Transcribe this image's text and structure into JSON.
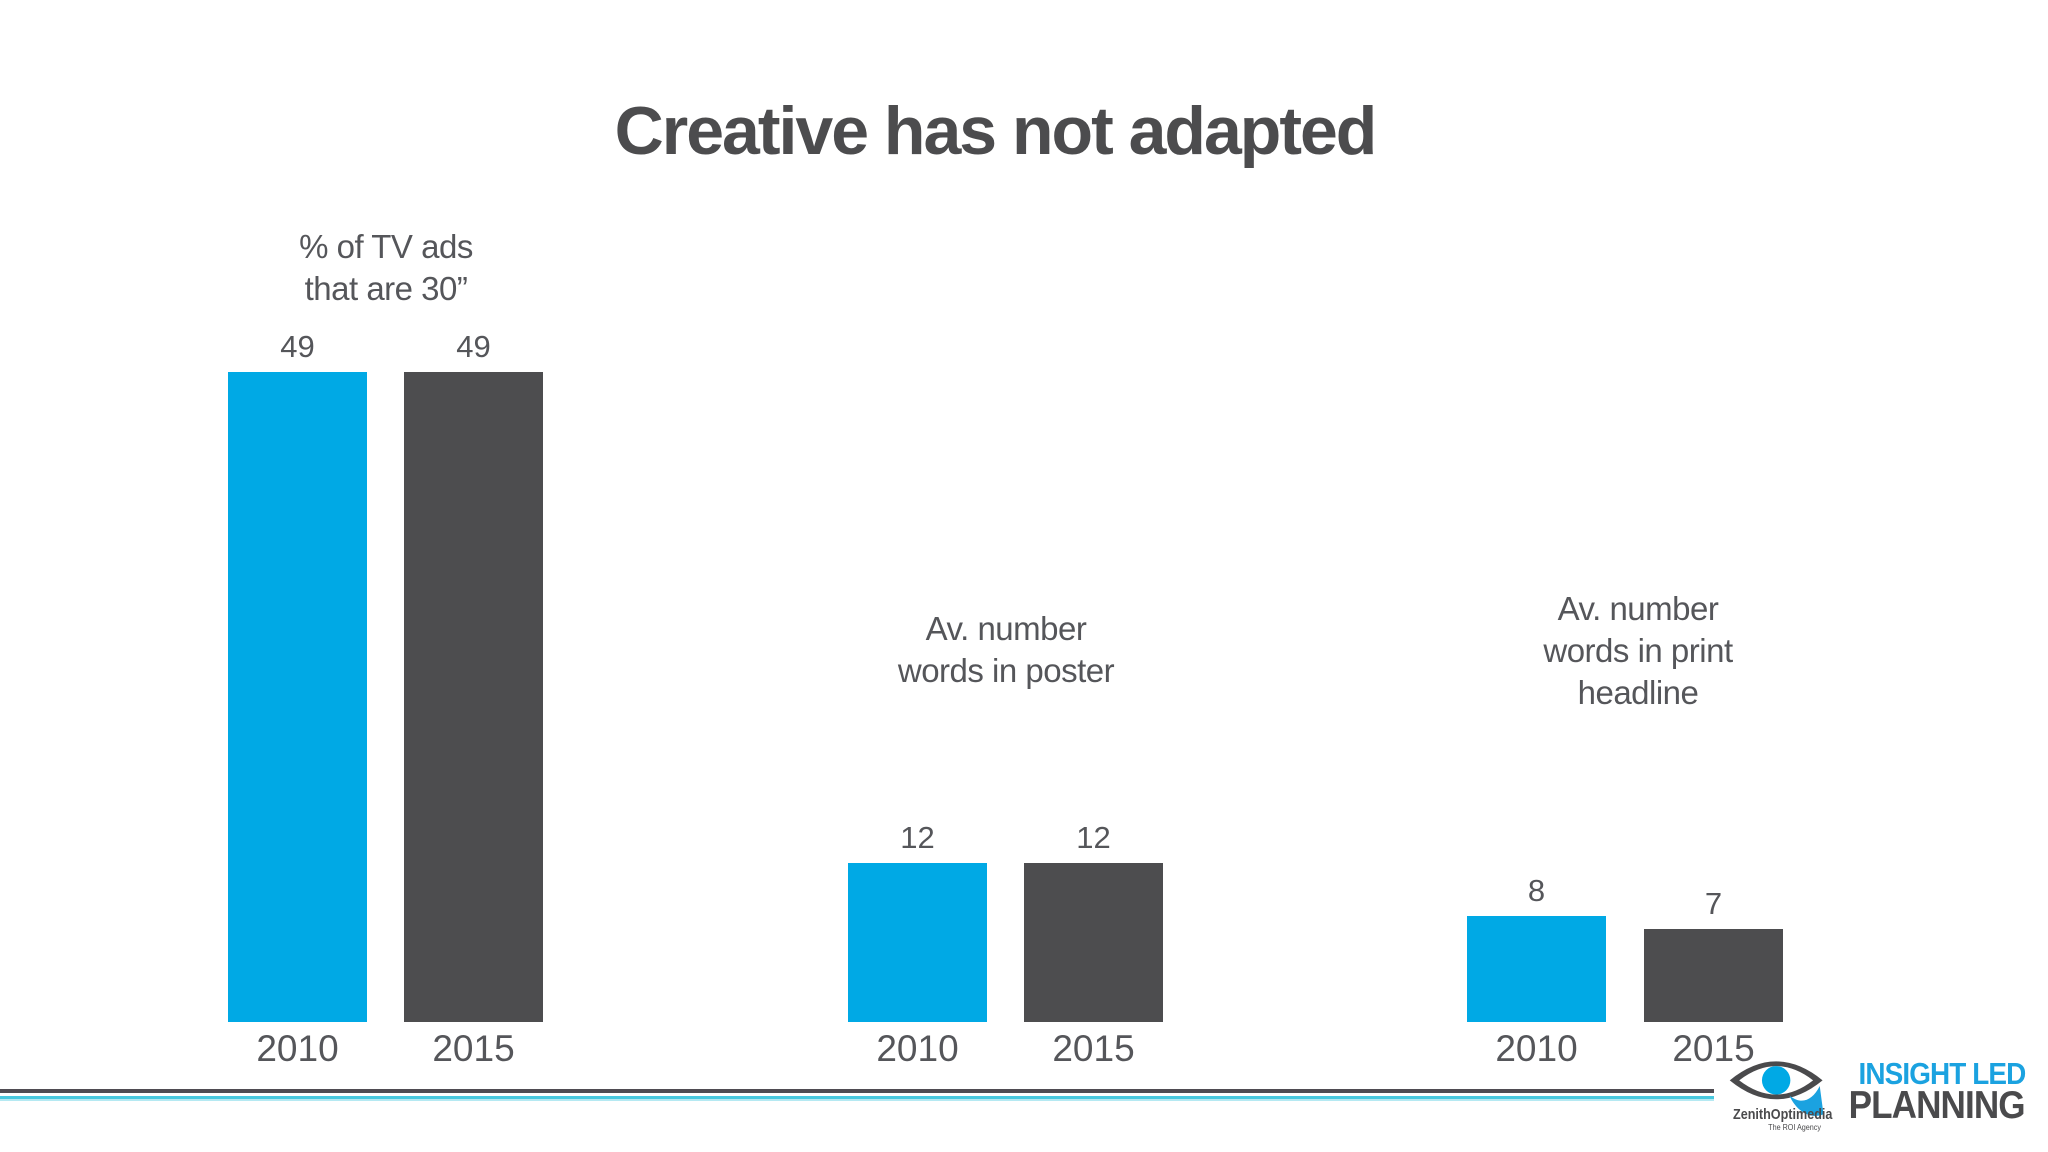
{
  "slide": {
    "title": "Creative has not adapted"
  },
  "chart_data": [
    {
      "type": "bar",
      "title": "% of TV ads that are 30”",
      "title_display": "% of TV ads\nthat are 30”",
      "categories": [
        "2010",
        "2015"
      ],
      "values": [
        49,
        49
      ],
      "series_colors": [
        "#00a9e5",
        "#4d4d4f"
      ],
      "ylim": [
        0,
        49
      ],
      "grid": false,
      "legend": false,
      "data_labels": true
    },
    {
      "type": "bar",
      "title": "Av. number words in poster",
      "title_display": "Av. number\nwords in poster",
      "categories": [
        "2010",
        "2015"
      ],
      "values": [
        12,
        12
      ],
      "series_colors": [
        "#00a9e5",
        "#4d4d4f"
      ],
      "ylim": [
        0,
        49
      ],
      "grid": false,
      "legend": false,
      "data_labels": true
    },
    {
      "type": "bar",
      "title": "Av. number words in print headline",
      "title_display": "Av. number\nwords in print\nheadline",
      "categories": [
        "2010",
        "2015"
      ],
      "values": [
        8,
        7
      ],
      "series_colors": [
        "#00a9e5",
        "#4d4d4f"
      ],
      "ylim": [
        0,
        49
      ],
      "grid": false,
      "legend": false,
      "data_labels": true
    }
  ],
  "footer": {
    "brand": "ZenithOptimedia",
    "brand_tagline": "The ROI Agency",
    "tagline_line1": "INSIGHT LED",
    "tagline_line2": "PLANNING",
    "eye_icon": "eye-icon"
  },
  "colors": {
    "accent_blue": "#00a9e5",
    "dark_gray": "#4d4d4f",
    "text_gray": "#55565a",
    "divider_dark": "#4f4c52",
    "divider_cyan": "#49c8de",
    "logo_blue": "#1ba2e0"
  }
}
